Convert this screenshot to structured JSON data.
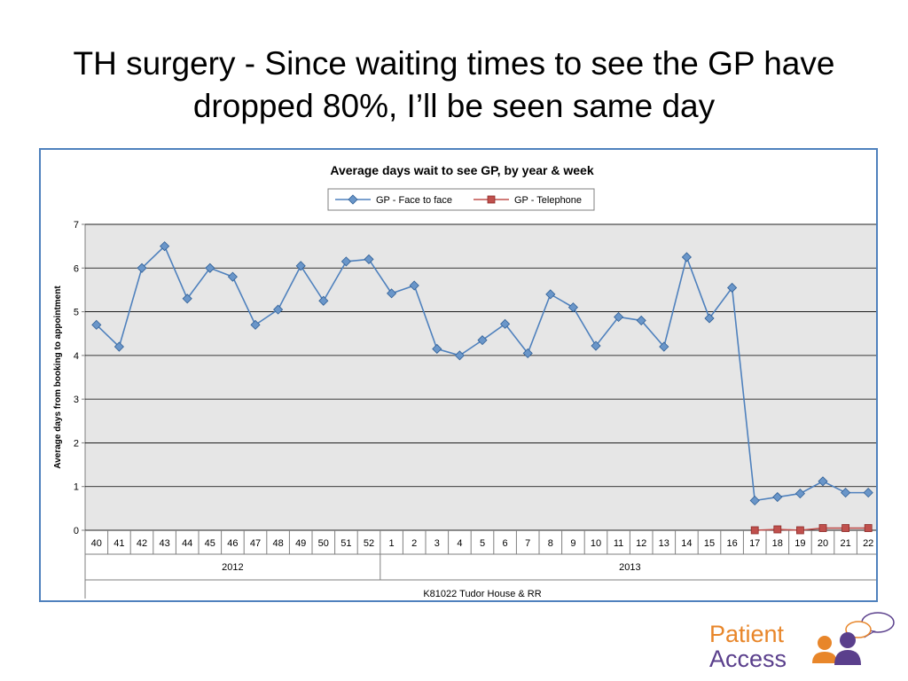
{
  "slide": {
    "title_line1": "TH surgery - Since waiting times to see the GP have",
    "title_line2": "dropped 80%, I’ll be seen same day"
  },
  "logo": {
    "word1": "Patient",
    "word2": "Access",
    "icon": "people-speech-bubble-icon",
    "colors": {
      "orange": "#e8862a",
      "purple": "#5a3f8c"
    }
  },
  "chart_data": {
    "type": "line",
    "title": "Average days wait to see GP, by year & week",
    "ylabel": "Average days from booking to appointment",
    "xlabel": "K81022 Tudor House & RR",
    "ylim": [
      0,
      7
    ],
    "yticks": [
      0,
      1,
      2,
      3,
      4,
      5,
      6,
      7
    ],
    "grid": true,
    "legend_position": "top-center",
    "categories": [
      "40",
      "41",
      "42",
      "43",
      "44",
      "45",
      "46",
      "47",
      "48",
      "49",
      "50",
      "51",
      "52",
      "1",
      "2",
      "3",
      "4",
      "5",
      "6",
      "7",
      "8",
      "9",
      "10",
      "11",
      "12",
      "13",
      "14",
      "15",
      "16",
      "17",
      "18",
      "19",
      "20",
      "21",
      "22"
    ],
    "year_groups": [
      {
        "label": "2012",
        "count": 13
      },
      {
        "label": "2013",
        "count": 22
      }
    ],
    "series": [
      {
        "name": "GP - Face to face",
        "color": "#4f81bd",
        "marker": "diamond",
        "values": [
          4.7,
          4.2,
          6.0,
          6.5,
          5.3,
          6.0,
          5.8,
          4.7,
          5.05,
          6.05,
          5.25,
          6.15,
          6.2,
          5.42,
          5.6,
          4.15,
          4.0,
          4.35,
          4.72,
          4.05,
          5.4,
          5.1,
          4.22,
          4.88,
          4.8,
          4.2,
          6.25,
          4.85,
          5.55,
          0.68,
          0.76,
          0.84,
          1.12,
          0.86,
          0.86
        ]
      },
      {
        "name": "GP - Telephone",
        "color": "#c0504d",
        "marker": "square",
        "values": [
          null,
          null,
          null,
          null,
          null,
          null,
          null,
          null,
          null,
          null,
          null,
          null,
          null,
          null,
          null,
          null,
          null,
          null,
          null,
          null,
          null,
          null,
          null,
          null,
          null,
          null,
          null,
          null,
          null,
          0.0,
          0.02,
          0.0,
          0.05,
          0.05,
          0.05
        ]
      }
    ]
  }
}
